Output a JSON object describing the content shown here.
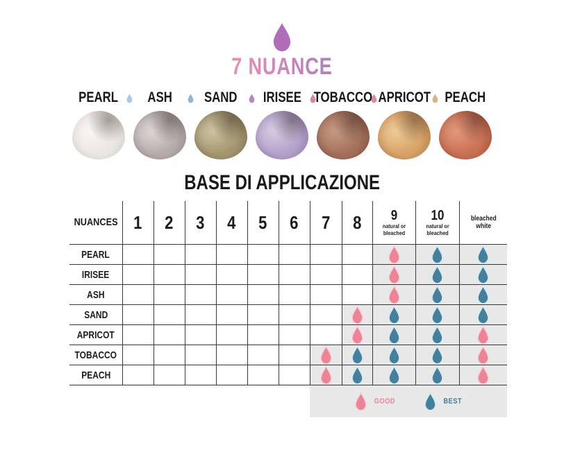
{
  "title": {
    "text": "7 NUANCE"
  },
  "colors": {
    "good": "#ec8496",
    "good_halo": "#f7ccd4",
    "best": "#44809b",
    "best_halo": "#cfeaf5",
    "brand_drop": "#ae6db6",
    "title_gradient_start": "#ee8db3",
    "title_gradient_end": "#ae7fc0",
    "highlight_bg": "#e8e8e8",
    "grid_line": "#383838"
  },
  "nuance_strip": {
    "items": [
      {
        "name": "PEARL",
        "swatch": {
          "light": "#f8f6f3",
          "base": "#eae6e1",
          "dark": "#cfc8c2"
        }
      },
      {
        "name": "ASH",
        "swatch": {
          "light": "#dcd6d3",
          "base": "#b5acaa",
          "dark": "#8e8583"
        }
      },
      {
        "name": "SAND",
        "swatch": {
          "light": "#cdc2a2",
          "base": "#a3966f",
          "dark": "#776b4f"
        }
      },
      {
        "name": "IRISEE",
        "swatch": {
          "light": "#d6cbe2",
          "base": "#b3a1c9",
          "dark": "#8a74a6"
        }
      },
      {
        "name": "TOBACCO",
        "swatch": {
          "light": "#c59a83",
          "base": "#a4705b",
          "dark": "#7a4c39"
        }
      },
      {
        "name": "APRICOT",
        "swatch": {
          "light": "#eeca97",
          "base": "#d7a267",
          "dark": "#ab773f"
        }
      },
      {
        "name": "PEACH",
        "swatch": {
          "light": "#e3987b",
          "base": "#c97053",
          "dark": "#a04c34"
        }
      }
    ],
    "separator_drop_colors": [
      "#a3cbe8",
      "#8bb7da",
      "#b289c4",
      "#d6899d",
      "#d98f9f",
      "#d9b183"
    ]
  },
  "table": {
    "title": "BASE DI APPLICAZIONE",
    "columns": [
      {
        "label": "NUANCES",
        "sub": ""
      },
      {
        "label": "1",
        "sub": ""
      },
      {
        "label": "2",
        "sub": ""
      },
      {
        "label": "3",
        "sub": ""
      },
      {
        "label": "4",
        "sub": ""
      },
      {
        "label": "5",
        "sub": ""
      },
      {
        "label": "6",
        "sub": ""
      },
      {
        "label": "7",
        "sub": ""
      },
      {
        "label": "8",
        "sub": ""
      },
      {
        "label": "9",
        "sub": "natural or bleached"
      },
      {
        "label": "10",
        "sub": "natural or bleached"
      },
      {
        "label": "",
        "sub": "bleached white"
      }
    ],
    "rows": [
      {
        "label": "PEARL",
        "cells": [
          "",
          "",
          "",
          "",
          "",
          "",
          "",
          "",
          "good",
          "best",
          "best"
        ]
      },
      {
        "label": "IRISEE",
        "cells": [
          "",
          "",
          "",
          "",
          "",
          "",
          "",
          "",
          "good",
          "best",
          "best"
        ]
      },
      {
        "label": "ASH",
        "cells": [
          "",
          "",
          "",
          "",
          "",
          "",
          "",
          "",
          "good",
          "best",
          "best"
        ]
      },
      {
        "label": "SAND",
        "cells": [
          "",
          "",
          "",
          "",
          "",
          "",
          "",
          "good",
          "best",
          "best",
          "best"
        ]
      },
      {
        "label": "APRICOT",
        "cells": [
          "",
          "",
          "",
          "",
          "",
          "",
          "",
          "good",
          "best",
          "best",
          "good"
        ]
      },
      {
        "label": "TOBACCO",
        "cells": [
          "",
          "",
          "",
          "",
          "",
          "",
          "good",
          "best",
          "best",
          "best",
          "good"
        ]
      },
      {
        "label": "PEACH",
        "cells": [
          "",
          "",
          "",
          "",
          "",
          "",
          "good",
          "best",
          "best",
          "best",
          "good"
        ]
      }
    ]
  },
  "legend": {
    "good_label": "GOOD",
    "best_label": "BEST"
  },
  "chart_data": {
    "type": "table",
    "title": "BASE DI APPLICAZIONE",
    "columns": [
      "NUANCES",
      "1",
      "2",
      "3",
      "4",
      "5",
      "6",
      "7",
      "8",
      "9 natural or bleached",
      "10 natural or bleached",
      "bleached white"
    ],
    "rows": [
      [
        "PEARL",
        "",
        "",
        "",
        "",
        "",
        "",
        "",
        "",
        "GOOD",
        "BEST",
        "BEST"
      ],
      [
        "IRISEE",
        "",
        "",
        "",
        "",
        "",
        "",
        "",
        "",
        "GOOD",
        "BEST",
        "BEST"
      ],
      [
        "ASH",
        "",
        "",
        "",
        "",
        "",
        "",
        "",
        "",
        "GOOD",
        "BEST",
        "BEST"
      ],
      [
        "SAND",
        "",
        "",
        "",
        "",
        "",
        "",
        "",
        "GOOD",
        "BEST",
        "BEST",
        "BEST"
      ],
      [
        "APRICOT",
        "",
        "",
        "",
        "",
        "",
        "",
        "",
        "GOOD",
        "BEST",
        "BEST",
        "GOOD"
      ],
      [
        "TOBACCO",
        "",
        "",
        "",
        "",
        "",
        "",
        "GOOD",
        "BEST",
        "BEST",
        "BEST",
        "GOOD"
      ],
      [
        "PEACH",
        "",
        "",
        "",
        "",
        "",
        "",
        "GOOD",
        "BEST",
        "BEST",
        "BEST",
        "GOOD"
      ]
    ],
    "legend": {
      "GOOD": "pink drop",
      "BEST": "teal drop"
    }
  }
}
